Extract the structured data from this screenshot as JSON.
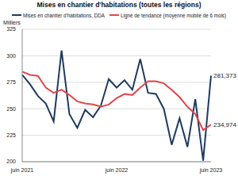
{
  "chart_data": {
    "type": "line",
    "title": "Mises en chantier d'habitations (toutes les régions)",
    "y_label": "Milliers",
    "categories": [
      "juin 2021",
      null,
      null,
      null,
      null,
      null,
      null,
      null,
      null,
      null,
      null,
      null,
      "juin 2022",
      null,
      null,
      null,
      null,
      null,
      null,
      null,
      null,
      null,
      null,
      null,
      "juin 2023"
    ],
    "series": [
      {
        "name": "Mises en chantier d'habitations, DDA",
        "color": "#1f3a5f",
        "values": [
          282,
          273,
          262,
          255,
          238,
          305,
          245,
          232,
          249,
          242,
          253,
          278,
          270,
          277,
          268,
          297,
          265,
          264,
          250,
          216,
          241,
          214,
          259,
          201,
          281.373
        ],
        "value_labels": [
          null,
          null,
          null,
          null,
          null,
          null,
          null,
          null,
          null,
          null,
          null,
          null,
          null,
          null,
          null,
          null,
          null,
          null,
          null,
          null,
          null,
          null,
          null,
          null,
          "281,373"
        ]
      },
      {
        "name": "Ligne de tendance (moyenne mobile de 6 mois)",
        "color": "#e0474c",
        "values": [
          285,
          282,
          281,
          270,
          265,
          268,
          263,
          257,
          255,
          254,
          252,
          254,
          260,
          264,
          263,
          270,
          276,
          276,
          274,
          268,
          261,
          252,
          245,
          230,
          234.974
        ],
        "value_labels": [
          null,
          null,
          null,
          null,
          null,
          null,
          null,
          null,
          null,
          null,
          null,
          null,
          null,
          null,
          null,
          null,
          null,
          null,
          null,
          null,
          null,
          null,
          null,
          null,
          "234,974"
        ]
      }
    ],
    "ylim": [
      200,
      325
    ],
    "yticks": [
      200,
      225,
      250,
      275,
      300,
      325
    ],
    "grid": true,
    "data_labels": true
  }
}
